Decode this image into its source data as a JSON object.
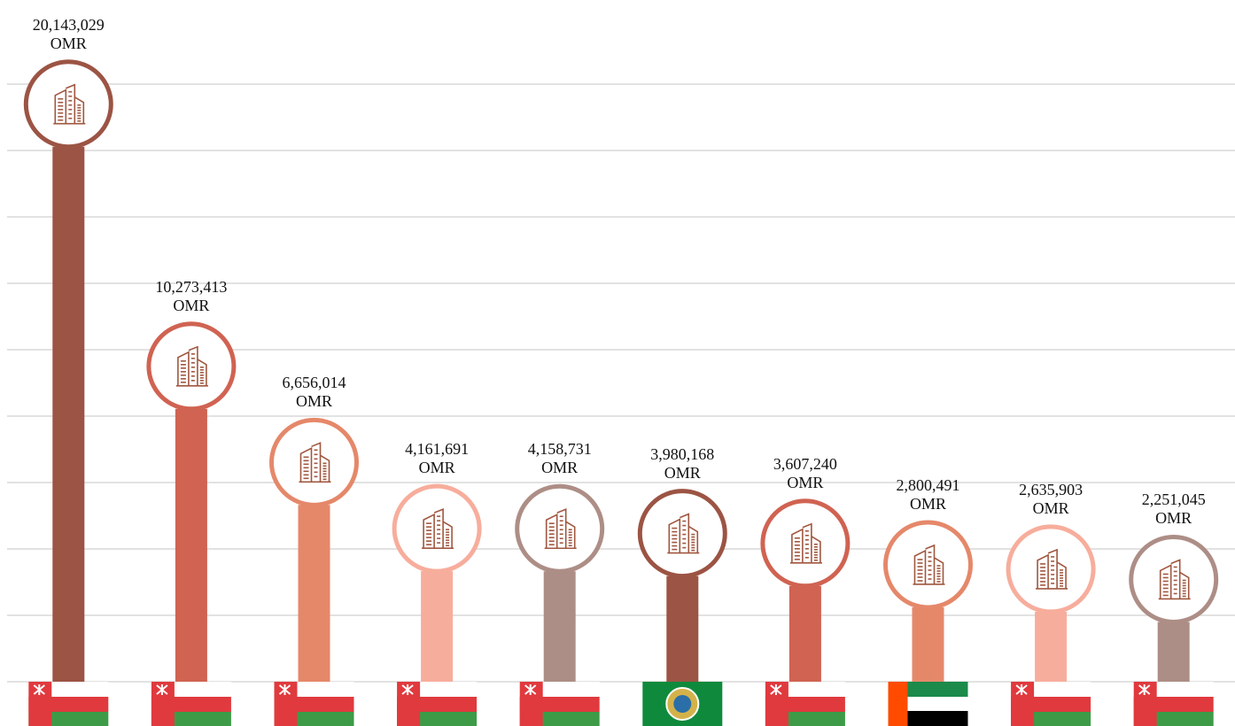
{
  "chart_data": {
    "type": "bar",
    "categories": [
      null,
      null,
      null,
      null,
      null,
      null,
      null,
      null,
      null,
      null
    ],
    "values": [
      20143029,
      10273413,
      6656014,
      4161691,
      4158731,
      3980168,
      3607240,
      2800491,
      2635903,
      2251045
    ],
    "value_labels": [
      "20,143,029 OMR",
      "10,273,413 OMR",
      "6,656,014 OMR",
      "4,161,691 OMR",
      "4,158,731 OMR",
      "3,980,168 OMR",
      "3,607,240 OMR",
      "2,800,491 OMR",
      "2,635,903 OMR",
      "2,251,045 OMR"
    ],
    "colors": [
      "#9c5444",
      "#d06352",
      "#e5886a",
      "#f7ad9c",
      "#ad8e86",
      "#9c5444",
      "#d06352",
      "#e5886a",
      "#f7ad9c",
      "#ad8e86"
    ],
    "ylim": [
      0,
      22500000
    ],
    "yticks": [
      0,
      2500000,
      5000000,
      7500000,
      10000000,
      12500000,
      15000000,
      17500000,
      20000000,
      22500000
    ],
    "grid": true
  }
}
